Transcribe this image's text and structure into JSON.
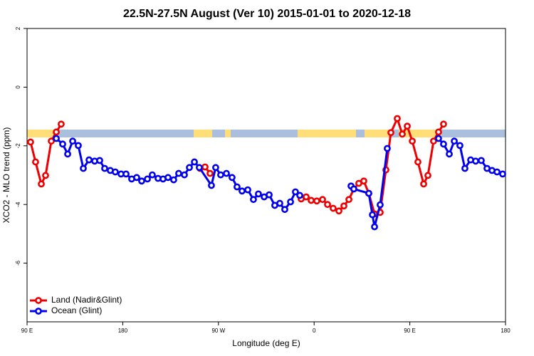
{
  "chart_data": {
    "type": "line",
    "title": "22.5N-27.5N August (Ver 10)   2015-01-01 to 2020-12-18",
    "xlabel": "Longitude (deg E)",
    "ylabel": "XCO2 - MLO trend (ppm)",
    "xlim": [
      90,
      540
    ],
    "ylim": [
      -8,
      2
    ],
    "xticks": [
      {
        "value": 90,
        "label": "90 E"
      },
      180,
      {
        "value": 270,
        "label": "90 W"
      },
      {
        "value": 360,
        "label": "0"
      },
      {
        "value": 450,
        "label": "90 E"
      },
      {
        "value": 540,
        "label": "180"
      }
    ],
    "yticks": [
      2,
      0,
      -2,
      -4,
      -6
    ],
    "legend": "bottomleft",
    "series": [
      {
        "name": "Land (Nadir&Glint)",
        "color": "#ee0000",
        "x": [
          93.3,
          98.0,
          103.4,
          107.4,
          112.8,
          117.5,
          122.1,
          null,
          252.7,
          257.4,
          262.1,
          null,
          347.8,
          352.5,
          357.2,
          362.5,
          367.9,
          372.6,
          377.9,
          383.3,
          388.0,
          392.7,
          397.3,
          402.0,
          406.7,
          411.4,
          416.8,
          422.1,
          427.5,
          432.2,
          438.2,
          442.9,
          447.6,
          452.3,
          457.6,
          463.0,
          467.0,
          472.3,
          477.0,
          481.7
        ],
        "values": [
          -1.87,
          -2.55,
          -3.3,
          -3.01,
          -1.84,
          -1.53,
          -1.26,
          null,
          -2.77,
          -2.72,
          -2.94,
          null,
          -3.81,
          -3.74,
          -3.86,
          -3.88,
          -3.83,
          -4.0,
          -4.13,
          -4.22,
          -4.05,
          -3.83,
          -3.47,
          -3.28,
          -3.2,
          -3.62,
          -4.32,
          -4.27,
          -2.82,
          -1.55,
          -1.07,
          -1.6,
          -1.33,
          -1.84,
          -2.55,
          -3.3,
          -3.01,
          -1.84,
          -1.53,
          -1.26
        ]
      },
      {
        "name": "Ocean (Glint)",
        "color": "#0000ee",
        "x": [
          117.5,
          123.5,
          128.2,
          132.9,
          138.2,
          142.9,
          148.3,
          153.6,
          158.3,
          163.0,
          168.3,
          173.0,
          178.4,
          183.1,
          188.4,
          193.1,
          197.8,
          203.2,
          207.8,
          213.2,
          217.9,
          222.6,
          227.9,
          232.6,
          238.0,
          242.7,
          247.4,
          252.0,
          263.4,
          267.4,
          272.1,
          277.5,
          282.8,
          287.5,
          292.2,
          297.6,
          302.9,
          307.6,
          313.0,
          317.7,
          323.0,
          327.7,
          332.4,
          337.8,
          342.4,
          346.5,
          null,
          394.7,
          397.3,
          411.4,
          414.8,
          416.8,
          422.1,
          428.8,
          null,
          477.0,
          481.7,
          487.1,
          491.8,
          497.1,
          501.8,
          507.2,
          511.9,
          517.2,
          522.6,
          527.3,
          532.0,
          537.3
        ],
        "values": [
          -1.75,
          -1.94,
          -2.28,
          -1.84,
          -1.99,
          -2.77,
          -2.48,
          -2.52,
          -2.5,
          -2.77,
          -2.84,
          -2.89,
          -2.96,
          -2.96,
          -3.13,
          -3.08,
          -3.2,
          -3.13,
          -2.99,
          -3.11,
          -3.13,
          -3.08,
          -3.16,
          -2.94,
          -2.99,
          -2.74,
          -2.55,
          -2.74,
          -3.35,
          -2.74,
          -2.99,
          -2.94,
          -3.08,
          -3.4,
          -3.54,
          -3.5,
          -3.83,
          -3.64,
          -3.74,
          -3.67,
          -4.03,
          -3.96,
          -4.17,
          -3.91,
          -3.57,
          -3.69,
          null,
          -3.37,
          -3.47,
          -3.62,
          -4.35,
          -4.76,
          -4.01,
          -2.09,
          null,
          -1.75,
          -1.94,
          -2.28,
          -1.84,
          -1.99,
          -2.77,
          -2.48,
          -2.52,
          -2.5,
          -2.77,
          -2.84,
          -2.89,
          -2.96
        ]
      }
    ]
  }
}
